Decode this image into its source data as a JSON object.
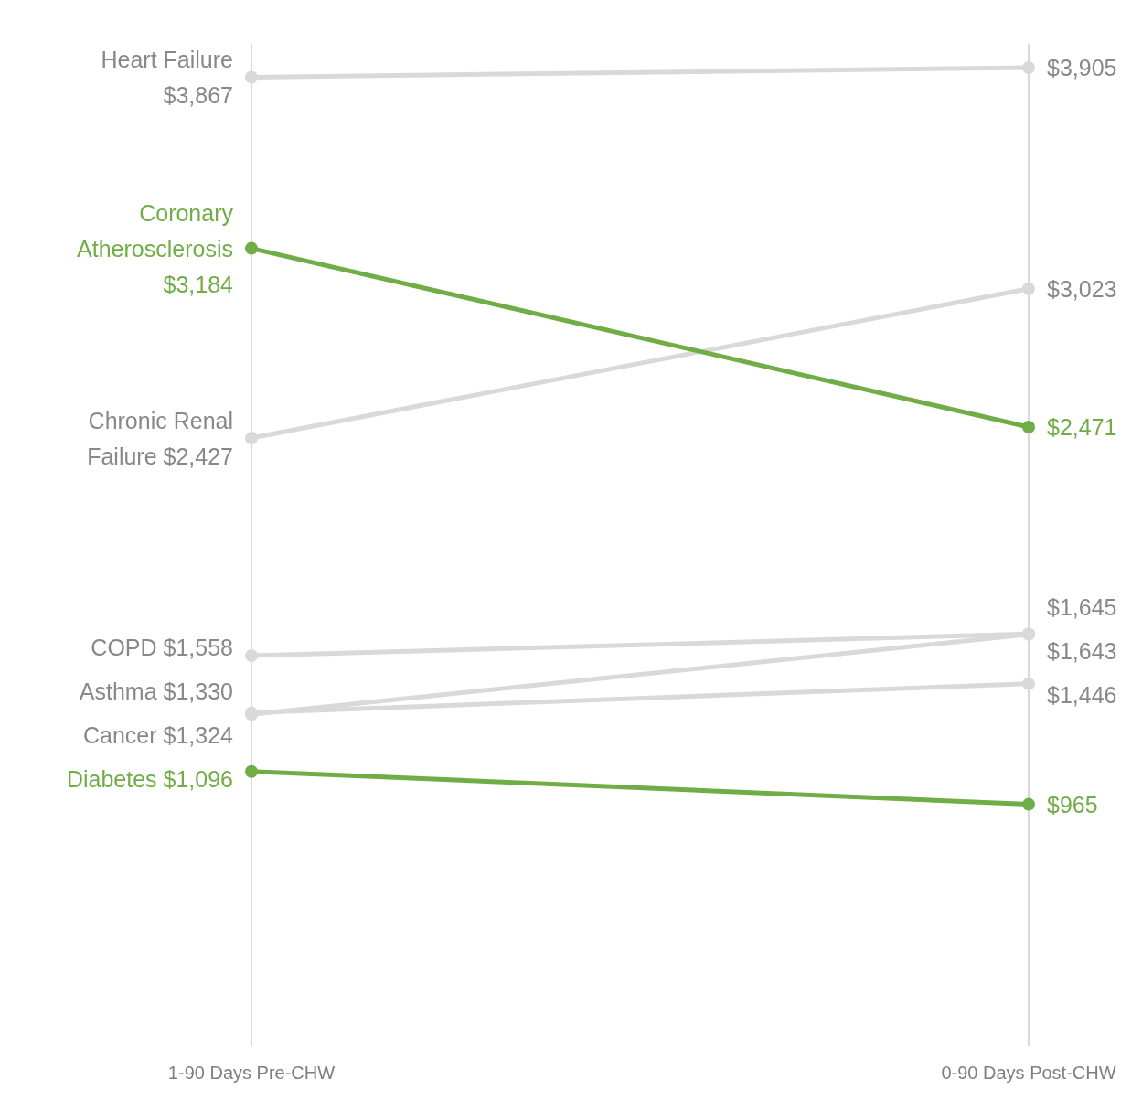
{
  "chart_data": {
    "type": "line",
    "categories": [
      "1-90 Days Pre-CHW",
      "0-90 Days Post-CHW"
    ],
    "ylim": [
      0,
      4000
    ],
    "grid": "x",
    "marker": "circle",
    "line_style": "solid",
    "series": [
      {
        "name": "Heart Failure",
        "color": "#d9d9d9",
        "values": [
          3867,
          3905
        ],
        "value_labels": [
          "$3,867",
          "$3,905"
        ]
      },
      {
        "name": "Chronic Renal Failure",
        "color": "#d9d9d9",
        "values": [
          2427,
          3023
        ],
        "value_labels": [
          "$2,427",
          "$3,023"
        ]
      },
      {
        "name": "COPD",
        "color": "#d9d9d9",
        "values": [
          1558,
          1645
        ],
        "value_labels": [
          "$1,558",
          "$1,645"
        ]
      },
      {
        "name": "Cancer",
        "color": "#d9d9d9",
        "values": [
          1324,
          1643
        ],
        "value_labels": [
          "$1,324",
          "$1,643"
        ]
      },
      {
        "name": "Asthma",
        "color": "#d9d9d9",
        "values": [
          1330,
          1446
        ],
        "value_labels": [
          "$1,330",
          "$1,446"
        ]
      },
      {
        "name": "Coronary Atherosclerosis",
        "color": "#70ad47",
        "values": [
          3184,
          2471
        ],
        "value_labels": [
          "$3,184",
          "$2,471"
        ]
      },
      {
        "name": "Diabetes",
        "color": "#70ad47",
        "values": [
          1096,
          965
        ],
        "value_labels": [
          "$1,096",
          "$965"
        ]
      }
    ]
  }
}
